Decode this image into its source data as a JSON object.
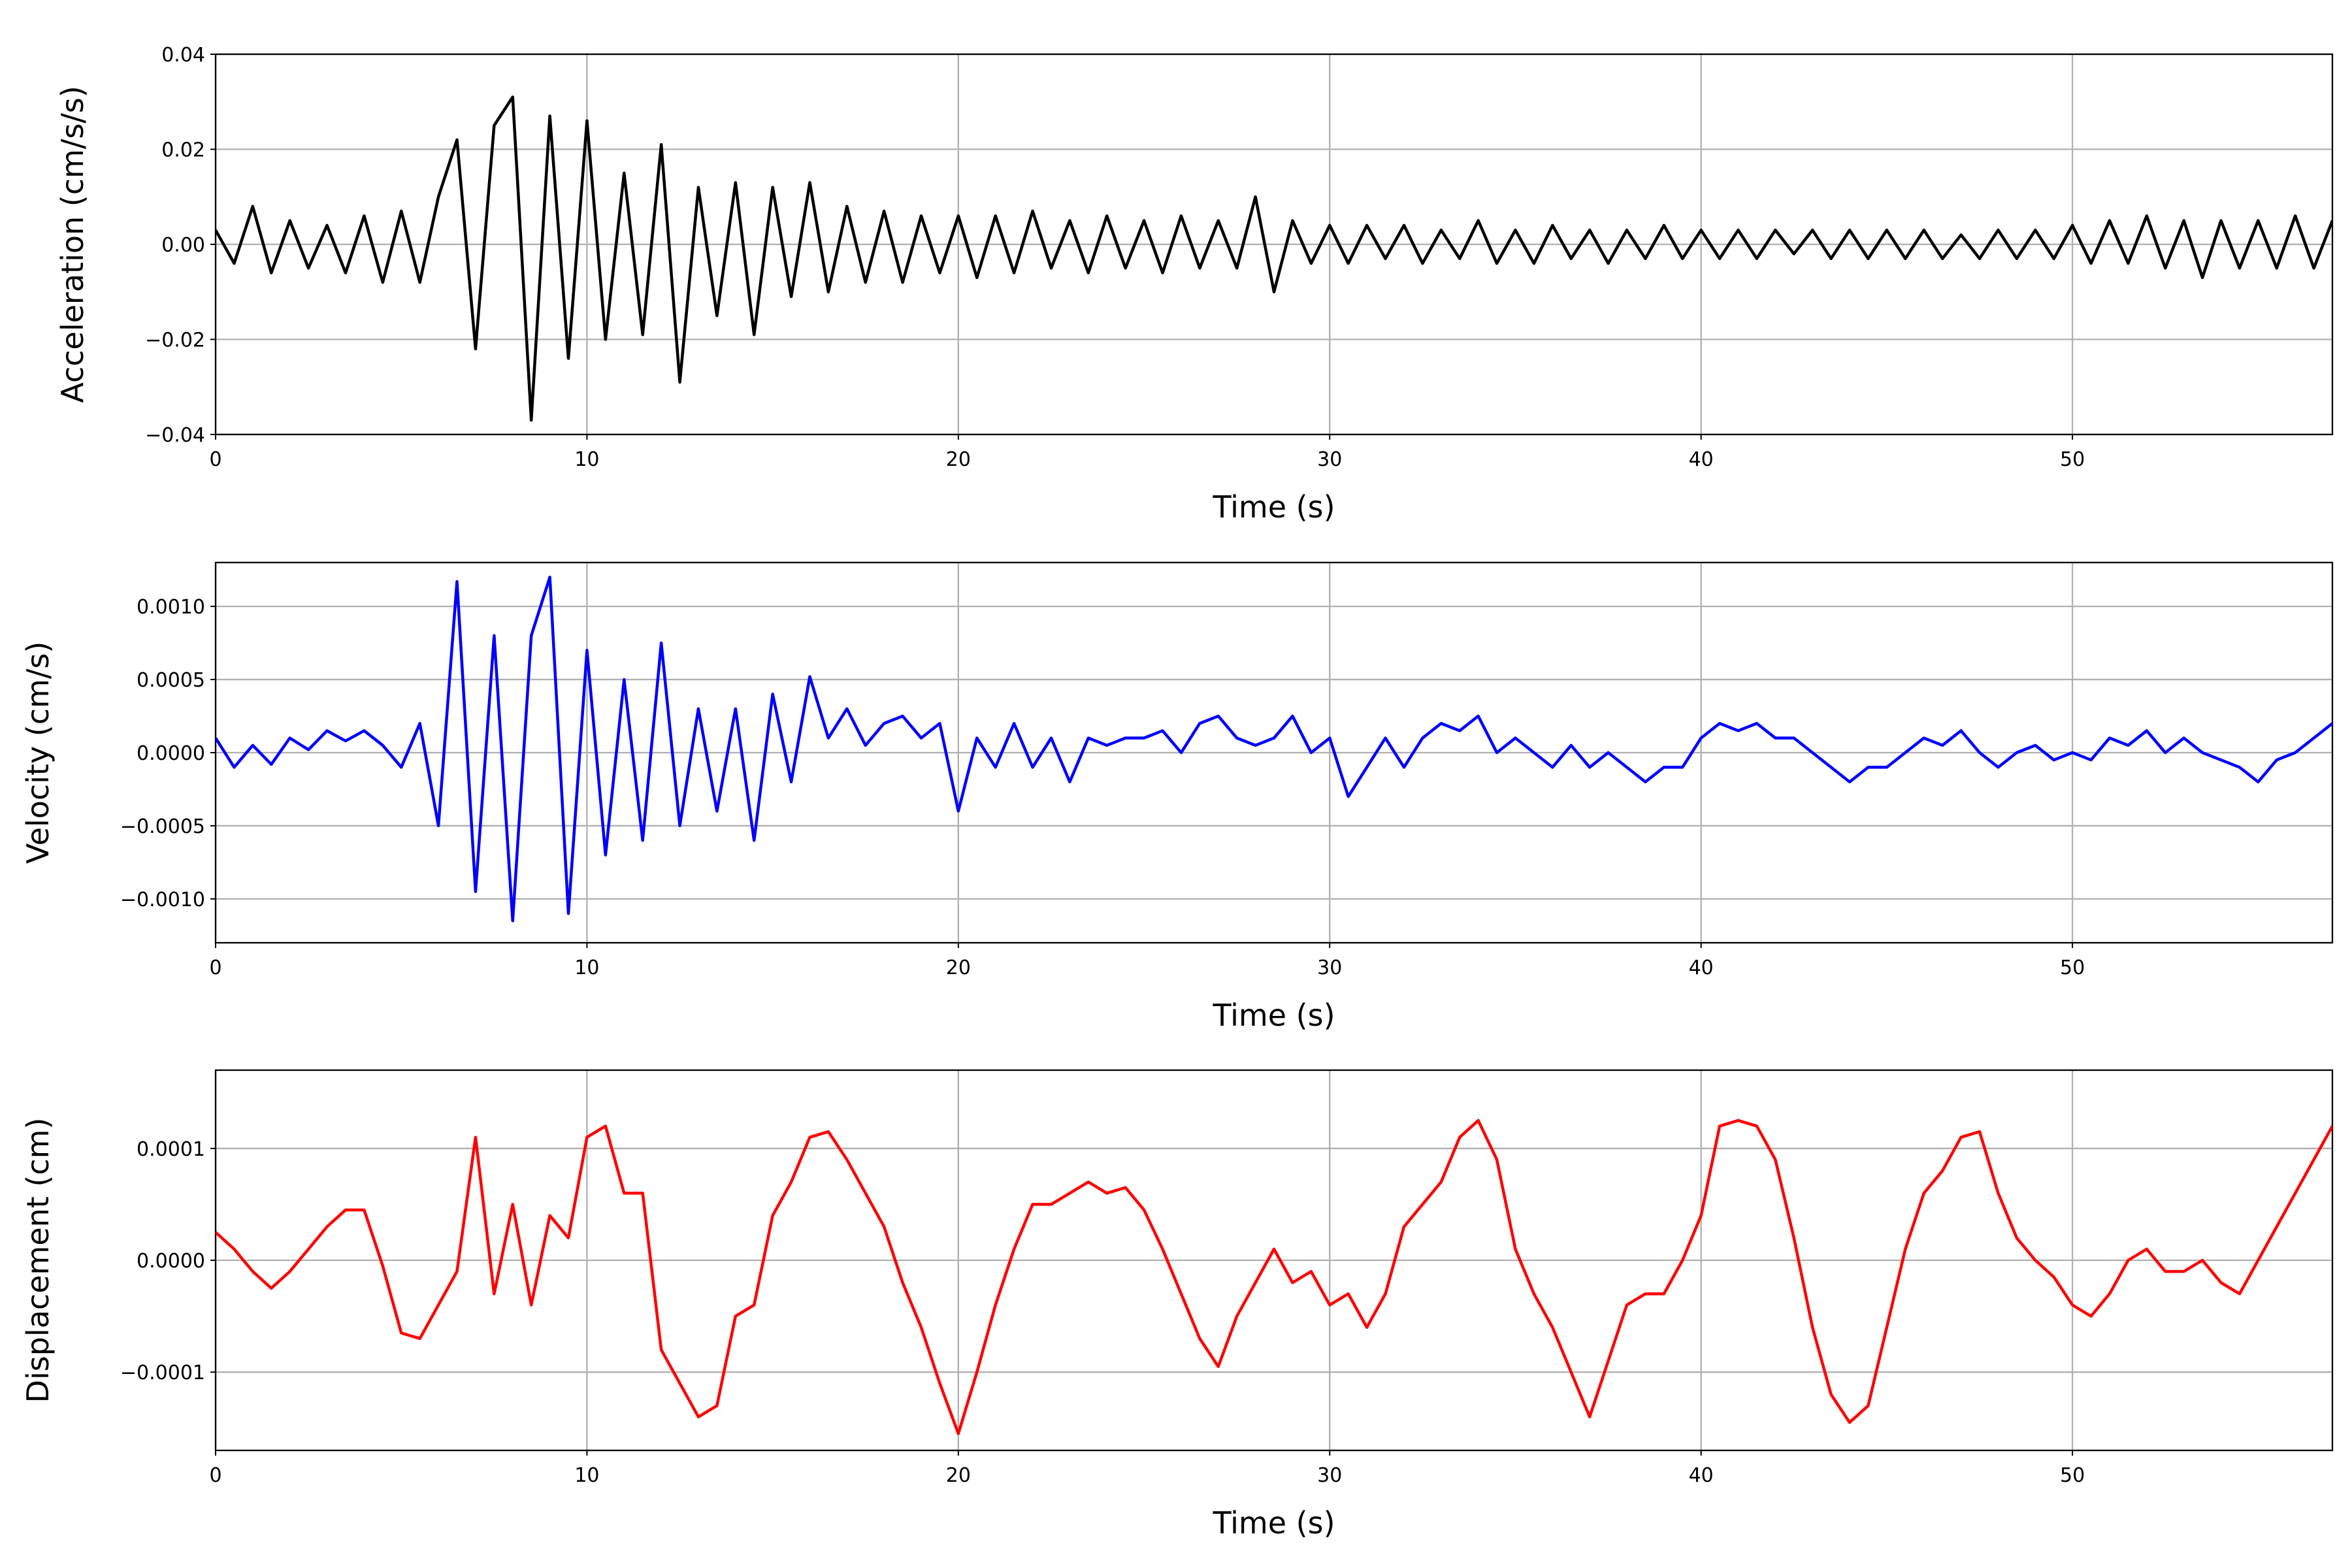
{
  "chart_data": [
    {
      "type": "line",
      "ylabel": "Acceleration (cm/s/s)",
      "xlabel": "Time (s)",
      "color": "#000000",
      "grid": true,
      "xlim": [
        0,
        57
      ],
      "xticks": [
        0,
        10,
        20,
        30,
        40,
        50
      ],
      "ylim": [
        -0.04,
        0.04
      ],
      "yticks": [
        {
          "value": -0.04,
          "label": "−0.04"
        },
        {
          "value": -0.02,
          "label": "−0.02"
        },
        {
          "value": 0,
          "label": "0.00"
        },
        0.02,
        0.04
      ],
      "x": [
        0,
        0.5,
        1,
        1.5,
        2,
        2.5,
        3,
        3.5,
        4,
        4.5,
        5,
        5.5,
        6,
        6.5,
        7,
        7.5,
        8,
        8.5,
        9,
        9.5,
        10,
        10.5,
        11,
        11.5,
        12,
        12.5,
        13,
        13.5,
        14,
        14.5,
        15,
        15.5,
        16,
        16.5,
        17,
        17.5,
        18,
        18.5,
        19,
        19.5,
        20,
        20.5,
        21,
        21.5,
        22,
        22.5,
        23,
        23.5,
        24,
        24.5,
        25,
        25.5,
        26,
        26.5,
        27,
        27.5,
        28,
        28.5,
        29,
        29.5,
        30,
        30.5,
        31,
        31.5,
        32,
        32.5,
        33,
        33.5,
        34,
        34.5,
        35,
        35.5,
        36,
        36.5,
        37,
        37.5,
        38,
        38.5,
        39,
        39.5,
        40,
        40.5,
        41,
        41.5,
        42,
        42.5,
        43,
        43.5,
        44,
        44.5,
        45,
        45.5,
        46,
        46.5,
        47,
        47.5,
        48,
        48.5,
        49,
        49.5,
        50,
        50.5,
        51,
        51.5,
        52,
        52.5,
        53,
        53.5,
        54,
        54.5,
        55,
        55.5,
        56,
        56.5,
        57
      ],
      "values": [
        0.003,
        -0.004,
        0.008,
        -0.006,
        0.005,
        -0.005,
        0.004,
        -0.006,
        0.006,
        -0.008,
        0.007,
        -0.008,
        0.01,
        0.022,
        -0.022,
        0.025,
        0.031,
        -0.037,
        0.027,
        -0.024,
        0.026,
        -0.02,
        0.015,
        -0.019,
        0.021,
        -0.029,
        0.012,
        -0.015,
        0.013,
        -0.019,
        0.012,
        -0.011,
        0.013,
        -0.01,
        0.008,
        -0.008,
        0.007,
        -0.008,
        0.006,
        -0.006,
        0.006,
        -0.007,
        0.006,
        -0.006,
        0.007,
        -0.005,
        0.005,
        -0.006,
        0.006,
        -0.005,
        0.005,
        -0.006,
        0.006,
        -0.005,
        0.005,
        -0.005,
        0.01,
        -0.01,
        0.005,
        -0.004,
        0.004,
        -0.004,
        0.004,
        -0.003,
        0.004,
        -0.004,
        0.003,
        -0.003,
        0.005,
        -0.004,
        0.003,
        -0.004,
        0.004,
        -0.003,
        0.003,
        -0.004,
        0.003,
        -0.003,
        0.004,
        -0.003,
        0.003,
        -0.003,
        0.003,
        -0.003,
        0.003,
        -0.002,
        0.003,
        -0.003,
        0.003,
        -0.003,
        0.003,
        -0.003,
        0.003,
        -0.003,
        0.002,
        -0.003,
        0.003,
        -0.003,
        0.003,
        -0.003,
        0.004,
        -0.004,
        0.005,
        -0.004,
        0.006,
        -0.005,
        0.005,
        -0.007,
        0.005,
        -0.005,
        0.005,
        -0.005,
        0.006,
        -0.005,
        0.005
      ]
    },
    {
      "type": "line",
      "ylabel": "Velocity (cm/s)",
      "xlabel": "Time (s)",
      "color": "#0000ff",
      "grid": true,
      "xlim": [
        0,
        57
      ],
      "xticks": [
        0,
        10,
        20,
        30,
        40,
        50
      ],
      "ylim": [
        -0.0013,
        0.0013
      ],
      "yticks": [
        {
          "value": -0.001,
          "label": "−0.0010"
        },
        {
          "value": -0.0005,
          "label": "−0.0005"
        },
        {
          "value": 0,
          "label": "0.0000"
        },
        {
          "value": 0.0005,
          "label": "0.0005"
        },
        {
          "value": 0.001,
          "label": "0.0010"
        }
      ],
      "x": [
        0,
        0.5,
        1,
        1.5,
        2,
        2.5,
        3,
        3.5,
        4,
        4.5,
        5,
        5.5,
        6,
        6.5,
        7,
        7.5,
        8,
        8.5,
        9,
        9.5,
        10,
        10.5,
        11,
        11.5,
        12,
        12.5,
        13,
        13.5,
        14,
        14.5,
        15,
        15.5,
        16,
        16.5,
        17,
        17.5,
        18,
        18.5,
        19,
        19.5,
        20,
        20.5,
        21,
        21.5,
        22,
        22.5,
        23,
        23.5,
        24,
        24.5,
        25,
        25.5,
        26,
        26.5,
        27,
        27.5,
        28,
        28.5,
        29,
        29.5,
        30,
        30.5,
        31,
        31.5,
        32,
        32.5,
        33,
        33.5,
        34,
        34.5,
        35,
        35.5,
        36,
        36.5,
        37,
        37.5,
        38,
        38.5,
        39,
        39.5,
        40,
        40.5,
        41,
        41.5,
        42,
        42.5,
        43,
        43.5,
        44,
        44.5,
        45,
        45.5,
        46,
        46.5,
        47,
        47.5,
        48,
        48.5,
        49,
        49.5,
        50,
        50.5,
        51,
        51.5,
        52,
        52.5,
        53,
        53.5,
        54,
        54.5,
        55,
        55.5,
        56,
        56.5,
        57
      ],
      "values": [
        0.0001,
        -0.0001,
        5e-05,
        -8e-05,
        0.0001,
        2e-05,
        0.00015,
        8e-05,
        0.00015,
        5e-05,
        -0.0001,
        0.0002,
        -0.0005,
        0.00117,
        -0.00095,
        0.0008,
        -0.00115,
        0.0008,
        0.0012,
        -0.0011,
        0.0007,
        -0.0007,
        0.0005,
        -0.0006,
        0.00075,
        -0.0005,
        0.0003,
        -0.0004,
        0.0003,
        -0.0006,
        0.0004,
        -0.0002,
        0.00052,
        0.0001,
        0.0003,
        5e-05,
        0.0002,
        0.00025,
        0.0001,
        0.0002,
        -0.0004,
        0.0001,
        -0.0001,
        0.0002,
        -0.0001,
        0.0001,
        -0.0002,
        0.0001,
        5e-05,
        0.0001,
        0.0001,
        0.00015,
        0,
        0.0002,
        0.00025,
        0.0001,
        5e-05,
        0.0001,
        0.00025,
        0,
        0.0001,
        -0.0003,
        -0.0001,
        0.0001,
        -0.0001,
        0.0001,
        0.0002,
        0.00015,
        0.00025,
        0,
        0.0001,
        0,
        -0.0001,
        5e-05,
        -0.0001,
        0,
        -0.0001,
        -0.0002,
        -0.0001,
        -0.0001,
        0.0001,
        0.0002,
        0.00015,
        0.0002,
        0.0001,
        0.0001,
        0,
        -0.0001,
        -0.0002,
        -0.0001,
        -0.0001,
        0,
        0.0001,
        5e-05,
        0.00015,
        0,
        -0.0001,
        0,
        5e-05,
        -5e-05,
        0,
        -5e-05,
        0.0001,
        5e-05,
        0.00015,
        0,
        0.0001,
        0,
        -5e-05,
        -0.0001,
        -0.0002,
        -5e-05,
        0,
        0.0001,
        0.0002
      ]
    },
    {
      "type": "line",
      "ylabel": "Displacement (cm)",
      "xlabel": "Time (s)",
      "color": "#ff0000",
      "grid": true,
      "xlim": [
        0,
        57
      ],
      "xticks": [
        0,
        10,
        20,
        30,
        40,
        50
      ],
      "ylim": [
        -0.00017,
        0.00017
      ],
      "yticks": [
        {
          "value": -0.0001,
          "label": "−0.0001"
        },
        {
          "value": 0,
          "label": "0.0000"
        },
        {
          "value": 0.0001,
          "label": "0.0001"
        }
      ],
      "x": [
        0,
        0.5,
        1,
        1.5,
        2,
        2.5,
        3,
        3.5,
        4,
        4.5,
        5,
        5.5,
        6,
        6.5,
        7,
        7.5,
        8,
        8.5,
        9,
        9.5,
        10,
        10.5,
        11,
        11.5,
        12,
        12.5,
        13,
        13.5,
        14,
        14.5,
        15,
        15.5,
        16,
        16.5,
        17,
        17.5,
        18,
        18.5,
        19,
        19.5,
        20,
        20.5,
        21,
        21.5,
        22,
        22.5,
        23,
        23.5,
        24,
        24.5,
        25,
        25.5,
        26,
        26.5,
        27,
        27.5,
        28,
        28.5,
        29,
        29.5,
        30,
        30.5,
        31,
        31.5,
        32,
        32.5,
        33,
        33.5,
        34,
        34.5,
        35,
        35.5,
        36,
        36.5,
        37,
        37.5,
        38,
        38.5,
        39,
        39.5,
        40,
        40.5,
        41,
        41.5,
        42,
        42.5,
        43,
        43.5,
        44,
        44.5,
        45,
        45.5,
        46,
        46.5,
        47,
        47.5,
        48,
        48.5,
        49,
        49.5,
        50,
        50.5,
        51,
        51.5,
        52,
        52.5,
        53,
        53.5,
        54,
        54.5,
        55,
        55.5,
        56,
        56.5,
        57
      ],
      "values": [
        2.5e-05,
        1e-05,
        -1e-05,
        -2.5e-05,
        -1e-05,
        1e-05,
        3e-05,
        4.5e-05,
        4.5e-05,
        -5e-06,
        -6.5e-05,
        -7e-05,
        -4e-05,
        -1e-05,
        0.00011,
        -3e-05,
        5e-05,
        -4e-05,
        4e-05,
        2e-05,
        0.00011,
        0.00012,
        6e-05,
        6e-05,
        -8e-05,
        -0.00011,
        -0.00014,
        -0.00013,
        -5e-05,
        -4e-05,
        4e-05,
        7e-05,
        0.00011,
        0.000115,
        9e-05,
        6e-05,
        3e-05,
        -2e-05,
        -6e-05,
        -0.00011,
        -0.000155,
        -0.0001,
        -4e-05,
        1e-05,
        5e-05,
        5e-05,
        6e-05,
        7e-05,
        6e-05,
        6.5e-05,
        4.5e-05,
        1e-05,
        -3e-05,
        -7e-05,
        -9.5e-05,
        -5e-05,
        -2e-05,
        1e-05,
        -2e-05,
        -1e-05,
        -4e-05,
        -3e-05,
        -6e-05,
        -3e-05,
        3e-05,
        5e-05,
        7e-05,
        0.00011,
        0.000125,
        9e-05,
        1e-05,
        -3e-05,
        -6e-05,
        -0.0001,
        -0.00014,
        -9e-05,
        -4e-05,
        -3e-05,
        -3e-05,
        0,
        4e-05,
        0.00012,
        0.000125,
        0.00012,
        9e-05,
        2e-05,
        -6e-05,
        -0.00012,
        -0.000145,
        -0.00013,
        -6e-05,
        1e-05,
        6e-05,
        8e-05,
        0.00011,
        0.000115,
        6e-05,
        2e-05,
        0,
        -1.5e-05,
        -4e-05,
        -5e-05,
        -3e-05,
        0,
        1e-05,
        -1e-05,
        -1e-05,
        0,
        -2e-05,
        -3e-05,
        0,
        3e-05,
        6e-05,
        9e-05,
        0.00012
      ]
    }
  ]
}
